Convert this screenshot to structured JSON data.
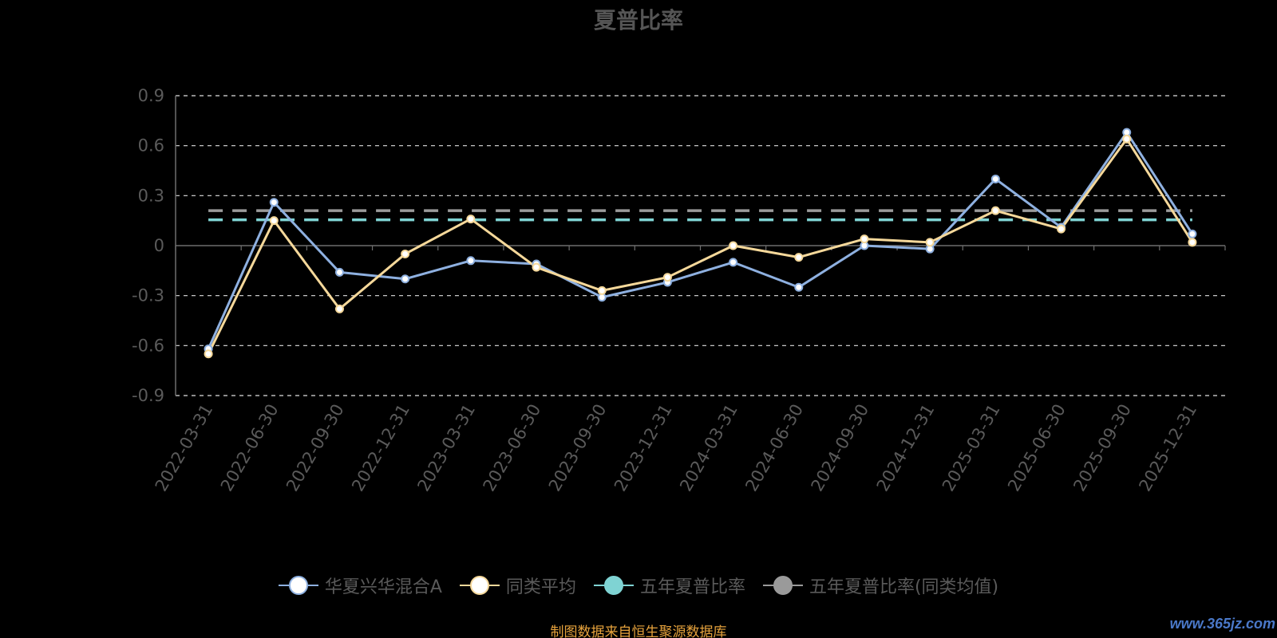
{
  "chart_data": {
    "type": "line",
    "title": "夏普比率",
    "categories": [
      "2022-03-31",
      "2022-06-30",
      "2022-09-30",
      "2022-12-31",
      "2023-03-31",
      "2023-06-30",
      "2023-09-30",
      "2023-12-31",
      "2024-03-31",
      "2024-06-30",
      "2024-09-30",
      "2024-12-31",
      "2025-03-31",
      "2025-06-30",
      "2025-09-30",
      "2025-12-31"
    ],
    "y_ticks": [
      "0.9",
      "0.6",
      "0.3",
      "0",
      "-0.3",
      "-0.6",
      "-0.9"
    ],
    "ylim": [
      -0.9,
      0.9
    ],
    "grid": true,
    "legend_position": "bottom",
    "series": [
      {
        "name": "华夏兴华混合A",
        "type": "line",
        "color": "#8eb0e0",
        "values": [
          -0.62,
          0.26,
          -0.16,
          -0.2,
          -0.09,
          -0.11,
          -0.31,
          -0.22,
          -0.1,
          -0.25,
          0.0,
          -0.02,
          0.4,
          0.11,
          0.68,
          0.07
        ]
      },
      {
        "name": "同类平均",
        "type": "line",
        "color": "#f5d89a",
        "values": [
          -0.65,
          0.15,
          -0.38,
          -0.05,
          0.16,
          -0.13,
          -0.27,
          -0.19,
          0.0,
          -0.07,
          0.04,
          0.02,
          0.21,
          0.1,
          0.64,
          0.02
        ]
      },
      {
        "name": "五年夏普比率",
        "type": "reference",
        "color": "#7fd3d3",
        "value": 0.155
      },
      {
        "name": "五年夏普比率(同类均值)",
        "type": "reference",
        "color": "#9a9a9a",
        "value": 0.21
      }
    ]
  },
  "footer": {
    "source": "制图数据来自恒生聚源数据库",
    "watermark": "www.365jz.com"
  }
}
